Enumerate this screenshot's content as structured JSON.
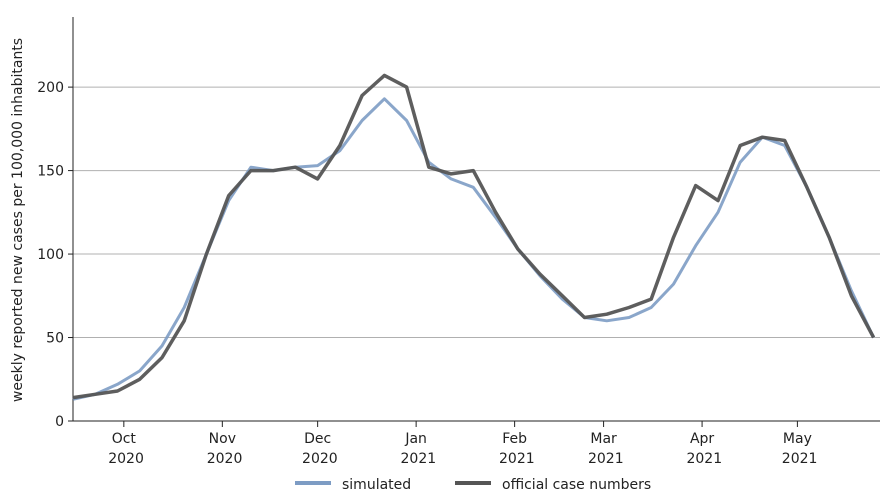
{
  "chart_data": {
    "type": "line",
    "y_label": "weekly reported new cases per 100,000 inhabitants",
    "x": [
      "2020-09-15",
      "2020-09-22",
      "2020-09-29",
      "2020-10-06",
      "2020-10-13",
      "2020-10-20",
      "2020-10-27",
      "2020-11-03",
      "2020-11-10",
      "2020-11-17",
      "2020-11-24",
      "2020-12-01",
      "2020-12-08",
      "2020-12-15",
      "2020-12-22",
      "2020-12-29",
      "2021-01-05",
      "2021-01-12",
      "2021-01-19",
      "2021-01-26",
      "2021-02-02",
      "2021-02-09",
      "2021-02-16",
      "2021-02-23",
      "2021-03-02",
      "2021-03-09",
      "2021-03-16",
      "2021-03-23",
      "2021-03-30",
      "2021-04-06",
      "2021-04-13",
      "2021-04-20",
      "2021-04-27",
      "2021-05-04",
      "2021-05-11",
      "2021-05-18",
      "2021-05-25"
    ],
    "series": [
      {
        "name": "simulated",
        "color": "#7d9cc4",
        "values": [
          13,
          16,
          22,
          30,
          45,
          68,
          100,
          132,
          152,
          150,
          152,
          153,
          162,
          180,
          193,
          180,
          155,
          145,
          140,
          122,
          103,
          87,
          73,
          62,
          60,
          62,
          68,
          82,
          105,
          125,
          155,
          170,
          165,
          140,
          110,
          78,
          50
        ]
      },
      {
        "name": "official case numbers",
        "color": "#555555",
        "values": [
          14,
          16,
          18,
          25,
          38,
          60,
          100,
          135,
          150,
          150,
          152,
          145,
          165,
          195,
          207,
          200,
          152,
          148,
          150,
          125,
          103,
          88,
          75,
          62,
          64,
          68,
          73,
          110,
          141,
          132,
          165,
          170,
          168,
          140,
          110,
          75,
          50
        ]
      }
    ],
    "xlim": [
      "2020-09-15",
      "2021-05-27"
    ],
    "xticks": [
      {
        "value": "2020-10-01",
        "label": "Oct 2020"
      },
      {
        "value": "2020-11-01",
        "label": "Nov 2020"
      },
      {
        "value": "2020-12-01",
        "label": "Dec 2020"
      },
      {
        "value": "2021-01-01",
        "label": "Jan 2021"
      },
      {
        "value": "2021-02-01",
        "label": "Feb 2021"
      },
      {
        "value": "2021-03-01",
        "label": "Mar 2021"
      },
      {
        "value": "2021-04-01",
        "label": "Apr 2021"
      },
      {
        "value": "2021-05-01",
        "label": "May 2021"
      }
    ],
    "ylim": [
      0,
      242
    ],
    "yticks": [
      0,
      50,
      100,
      150,
      200
    ],
    "grid": true,
    "legend": "bottom"
  }
}
